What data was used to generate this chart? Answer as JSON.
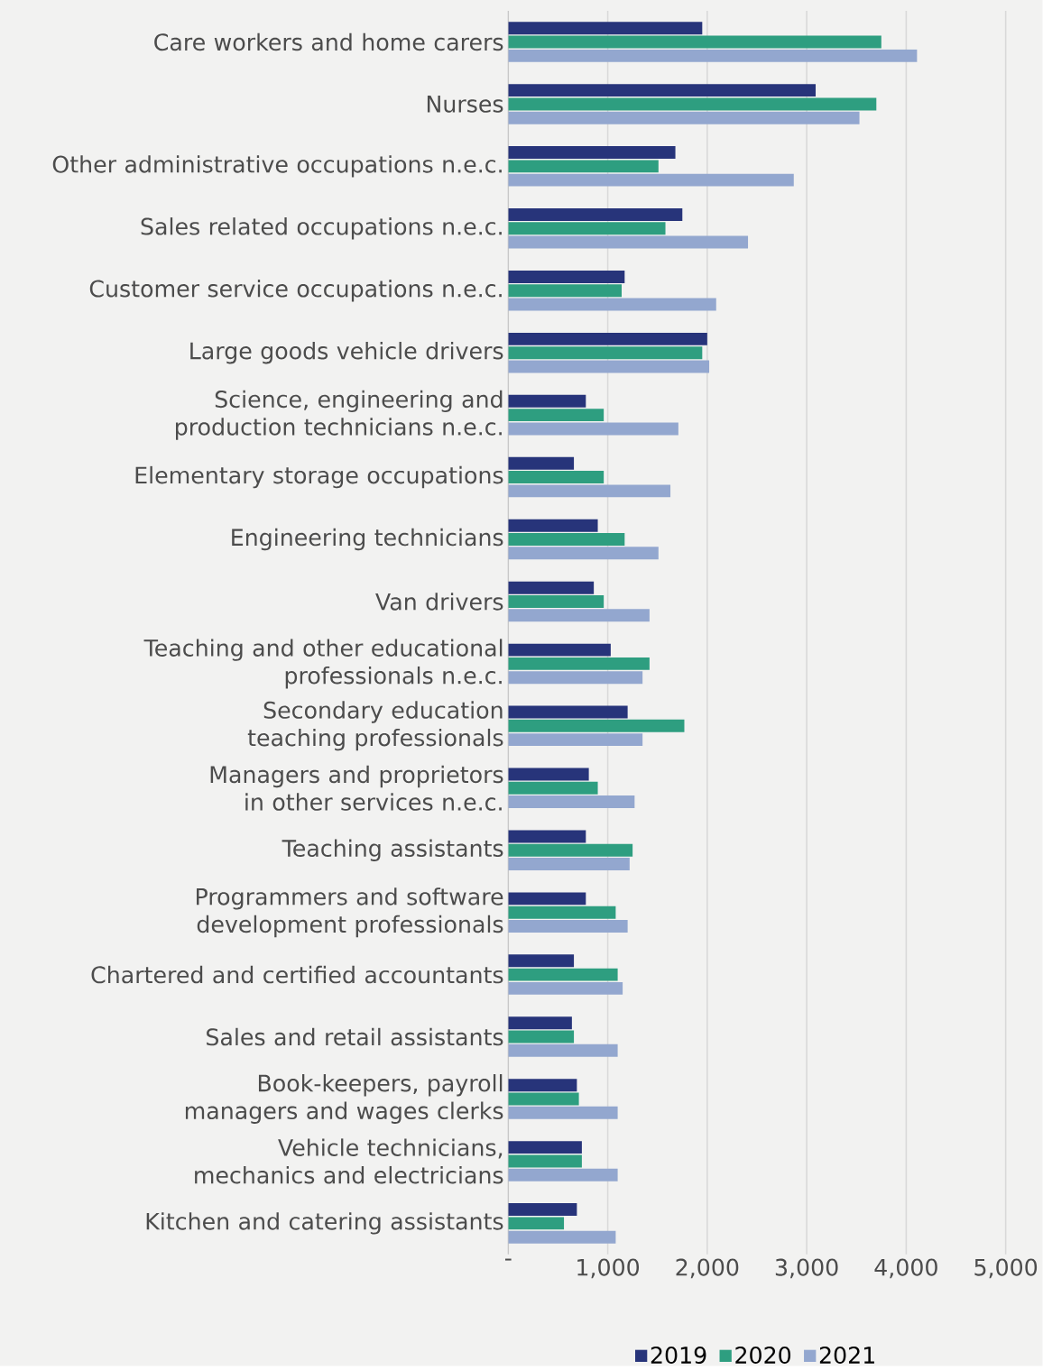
{
  "chart_data": {
    "type": "bar",
    "orientation": "horizontal",
    "categories": [
      "Care workers and home carers",
      "Nurses",
      "Other administrative occupations n.e.c.",
      "Sales related occupations n.e.c.",
      "Customer service occupations n.e.c.",
      "Large goods vehicle drivers",
      "Science, engineering and production technicians n.e.c.",
      "Elementary storage occupations",
      "Engineering technicians",
      "Van drivers",
      "Teaching and other educational professionals n.e.c.",
      "Secondary education teaching professionals",
      "Managers and proprietors in other services n.e.c.",
      "Teaching assistants",
      "Programmers and software development professionals",
      "Chartered and certified accountants",
      "Sales and retail assistants",
      "Book-keepers, payroll managers and wages clerks",
      "Vehicle technicians, mechanics and electricians",
      "Kitchen and catering assistants"
    ],
    "series": [
      {
        "name": "2019",
        "color": "#27347a",
        "values": [
          1950,
          3090,
          1680,
          1750,
          1170,
          2000,
          780,
          660,
          900,
          860,
          1030,
          1200,
          810,
          780,
          780,
          660,
          640,
          690,
          740,
          690
        ]
      },
      {
        "name": "2020",
        "color": "#2e9e80",
        "values": [
          3750,
          3700,
          1510,
          1580,
          1140,
          1950,
          960,
          960,
          1170,
          960,
          1420,
          1770,
          900,
          1250,
          1080,
          1100,
          660,
          710,
          740,
          560
        ]
      },
      {
        "name": "2021",
        "color": "#93a7cf",
        "values": [
          4110,
          3530,
          2870,
          2410,
          2090,
          2020,
          1710,
          1630,
          1510,
          1420,
          1350,
          1350,
          1270,
          1220,
          1200,
          1150,
          1100,
          1100,
          1100,
          1080
        ]
      }
    ],
    "xlim": [
      0,
      5000
    ],
    "xticks": [
      {
        "value": 0,
        "label": "-"
      },
      {
        "value": 1000,
        "label": "1,000"
      },
      {
        "value": 2000,
        "label": "2,000"
      },
      {
        "value": 3000,
        "label": "3,000"
      },
      {
        "value": 4000,
        "label": "4,000"
      },
      {
        "value": 5000,
        "label": "5,000"
      }
    ],
    "grid": "x",
    "legend": "bottom"
  }
}
